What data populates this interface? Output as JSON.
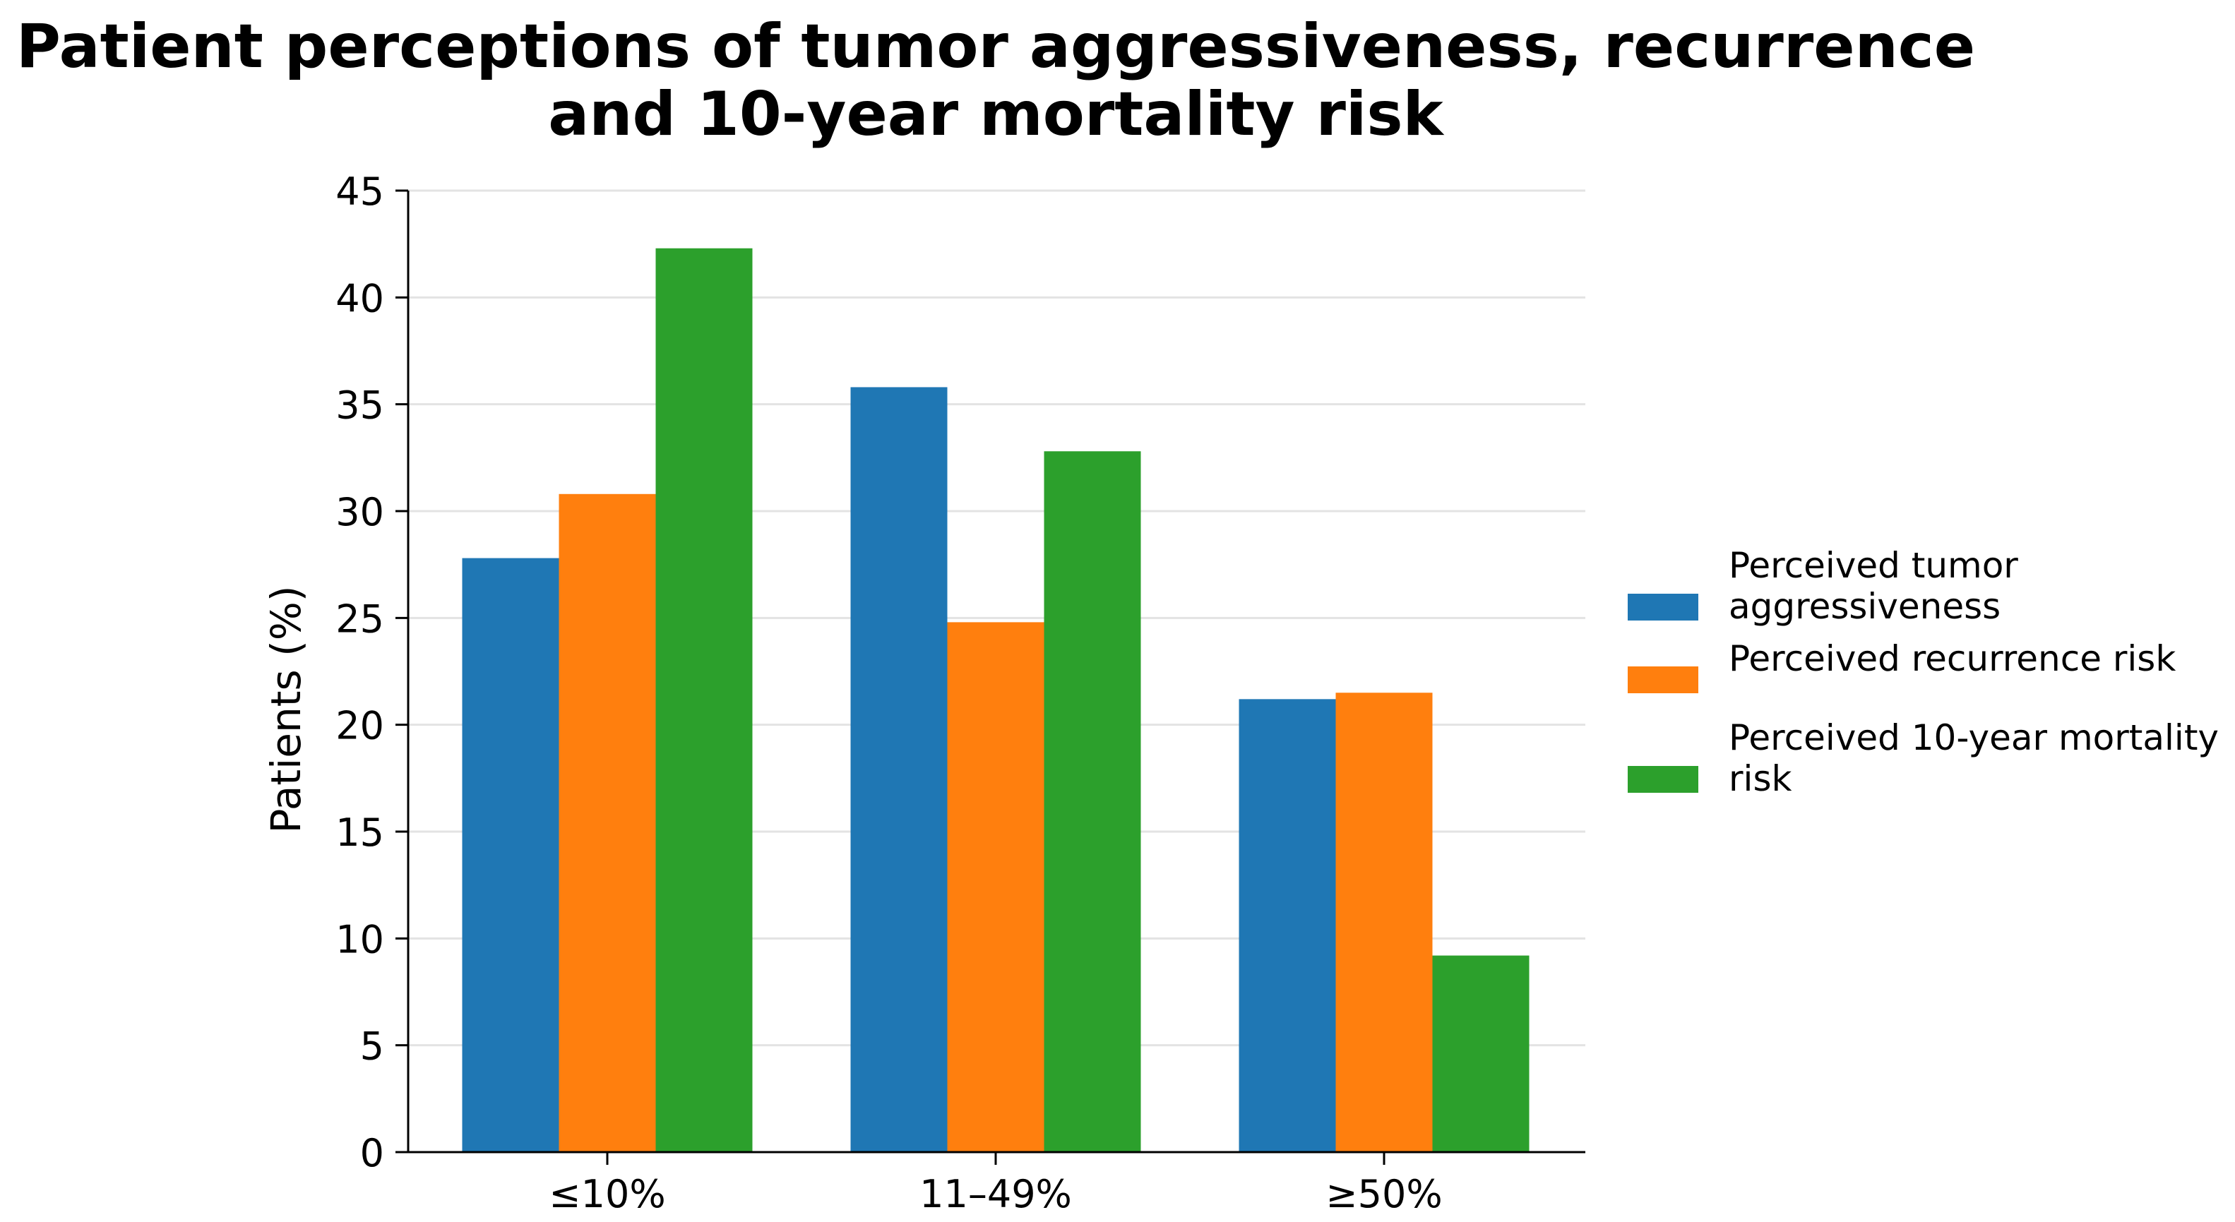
{
  "chart_data": {
    "type": "bar",
    "title_lines": [
      "Patient perceptions of tumor aggressiveness, recurrence",
      "and 10-year mortality risk"
    ],
    "xlabel": "",
    "ylabel": "Patients (%)",
    "categories": [
      "≤10%",
      "11–49%",
      "≥50%"
    ],
    "ylim": [
      0,
      45
    ],
    "yticks": [
      0,
      5,
      10,
      15,
      20,
      25,
      30,
      35,
      40,
      45
    ],
    "grid": "horizontal",
    "legend_position": "right",
    "series": [
      {
        "name": "Perceived tumor aggressiveness",
        "legend_lines": [
          "Perceived tumor",
          "aggressiveness"
        ],
        "color": "#1f77b4",
        "values": [
          27.8,
          35.8,
          21.2
        ]
      },
      {
        "name": "Perceived recurrence risk",
        "legend_lines": [
          "Perceived recurrence risk"
        ],
        "color": "#ff7f0e",
        "values": [
          30.8,
          24.8,
          21.5
        ]
      },
      {
        "name": "Perceived 10-year mortality risk",
        "legend_lines": [
          "Perceived 10-year mortality",
          "risk"
        ],
        "color": "#2ca02c",
        "values": [
          42.3,
          32.8,
          9.2
        ]
      }
    ]
  }
}
